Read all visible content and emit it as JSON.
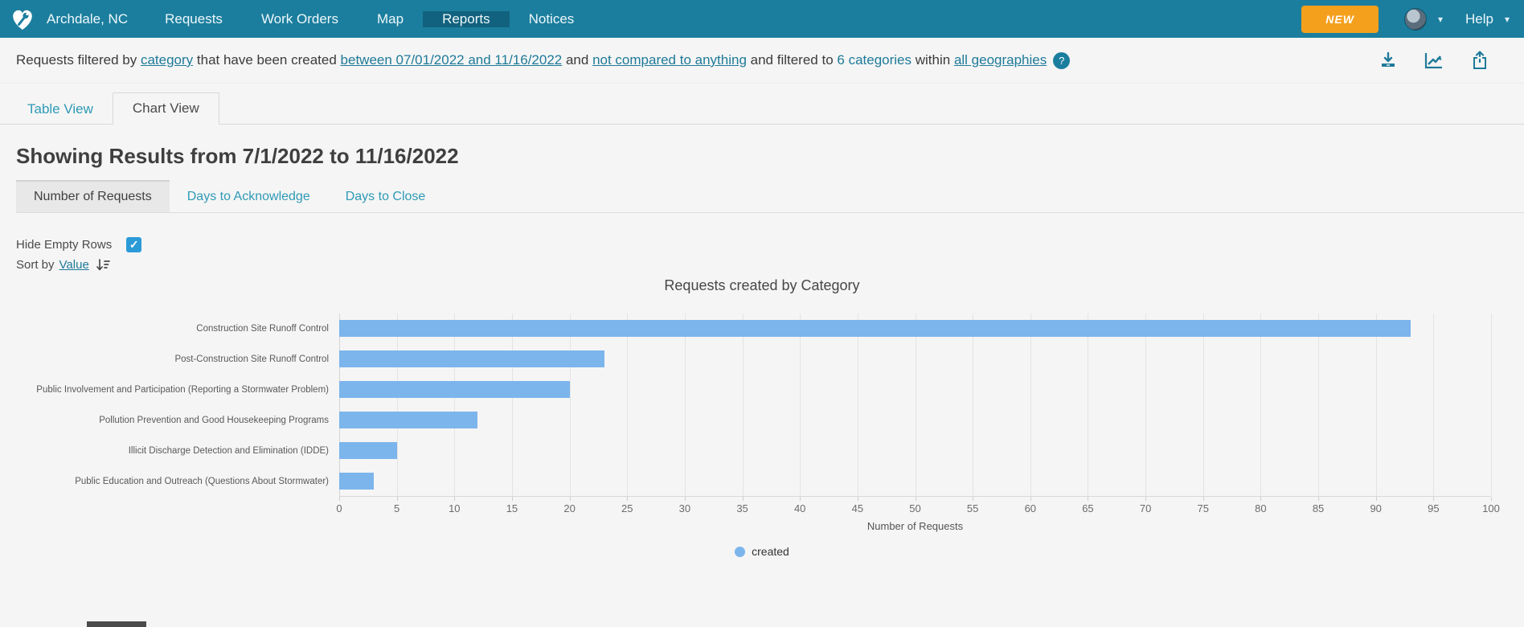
{
  "nav": {
    "brand": "Archdale, NC",
    "items": [
      {
        "label": "Requests",
        "active": false
      },
      {
        "label": "Work Orders",
        "active": false
      },
      {
        "label": "Map",
        "active": false
      },
      {
        "label": "Reports",
        "active": true
      },
      {
        "label": "Notices",
        "active": false
      }
    ],
    "new_button": "NEW",
    "help_label": "Help",
    "colors": {
      "bg": "#1b7e9e",
      "active_bg": "#11627e",
      "new_button_bg": "#f5a01d"
    }
  },
  "filter_bar": {
    "segments": [
      {
        "text": "Requests filtered by ",
        "type": "plain"
      },
      {
        "text": "category",
        "type": "link"
      },
      {
        "text": " that have been created ",
        "type": "plain"
      },
      {
        "text": "between 07/01/2022 and 11/16/2022",
        "type": "link"
      },
      {
        "text": " and ",
        "type": "plain"
      },
      {
        "text": "not compared to anything",
        "type": "link"
      },
      {
        "text": " and filtered to ",
        "type": "plain"
      },
      {
        "text": "6 categories",
        "type": "linkplain"
      },
      {
        "text": " within ",
        "type": "plain"
      },
      {
        "text": "all geographies",
        "type": "link"
      }
    ],
    "help_badge": "?",
    "icons": [
      "download-icon",
      "line-chart-icon",
      "share-icon"
    ],
    "link_color": "#1f7a99"
  },
  "view_tabs": [
    {
      "label": "Table View",
      "active": false
    },
    {
      "label": "Chart View",
      "active": true
    }
  ],
  "heading": "Showing Results from 7/1/2022 to 11/16/2022",
  "metric_tabs": [
    {
      "label": "Number of Requests",
      "active": true
    },
    {
      "label": "Days to Acknowledge",
      "active": false
    },
    {
      "label": "Days to Close",
      "active": false
    }
  ],
  "controls": {
    "hide_empty_rows_label": "Hide Empty Rows",
    "hide_empty_rows_checked": true,
    "sort_by_label": "Sort by",
    "sort_by_link": "Value"
  },
  "chart_data": {
    "type": "bar",
    "orientation": "horizontal",
    "title": "Requests created by Category",
    "categories": [
      "Construction Site Runoff Control",
      "Post-Construction Site Runoff Control",
      "Public Involvement and Participation (Reporting a Stormwater Problem)",
      "Pollution Prevention and Good Housekeeping Programs",
      "Illicit Discharge Detection and Elimination (IDDE)",
      "Public Education and Outreach (Questions About Stormwater)"
    ],
    "series": [
      {
        "name": "created",
        "values": [
          93,
          23,
          20,
          12,
          5,
          3
        ],
        "color": "#7cb5ec"
      }
    ],
    "xlabel": "Number of Requests",
    "xlim": [
      0,
      100
    ],
    "tick_step": 5,
    "grid": true,
    "legend_position": "bottom"
  }
}
